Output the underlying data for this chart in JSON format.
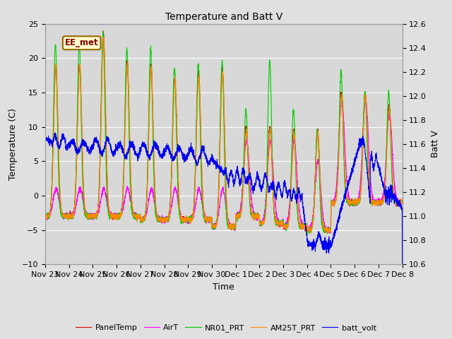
{
  "title": "Temperature and Batt V",
  "xlabel": "Time",
  "ylabel_left": "Temperature (C)",
  "ylabel_right": "Batt V",
  "ylim_left": [
    -10,
    25
  ],
  "ylim_right": [
    10.6,
    12.6
  ],
  "yticks_left": [
    -10,
    -5,
    0,
    5,
    10,
    15,
    20,
    25
  ],
  "yticks_right": [
    10.6,
    10.8,
    11.0,
    11.2,
    11.4,
    11.6,
    11.8,
    12.0,
    12.2,
    12.4,
    12.6
  ],
  "annotation_text": "EE_met",
  "series_colors": {
    "PanelTemp": "#dd0000",
    "AirT": "#ff00ff",
    "NR01_PRT": "#00cc00",
    "AM25T_PRT": "#ff8800",
    "batt_volt": "#0000ee"
  },
  "legend_entries": [
    "PanelTemp",
    "AirT",
    "NR01_PRT",
    "AM25T_PRT",
    "batt_volt"
  ],
  "x_tick_labels": [
    "Nov 23",
    "Nov 24",
    "Nov 25",
    "Nov 26",
    "Nov 27",
    "Nov 28",
    "Nov 29",
    "Nov 30",
    "Dec 1",
    "Dec 2",
    "Dec 3",
    "Dec 4",
    "Dec 5",
    "Dec 6",
    "Dec 7",
    "Dec 8"
  ],
  "x_tick_days": [
    0,
    1,
    2,
    3,
    4,
    5,
    6,
    7,
    8,
    9,
    10,
    11,
    12,
    13,
    14,
    15
  ],
  "fig_bg": "#e0e0e0",
  "plot_bg": "#d8d8d8",
  "grid_color": "#ffffff"
}
